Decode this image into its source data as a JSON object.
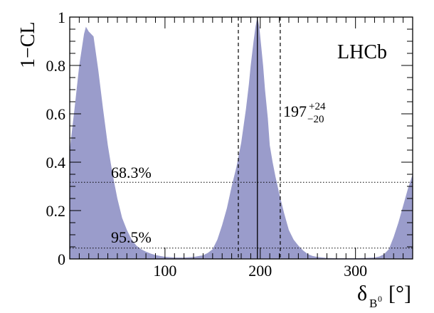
{
  "chart_data": {
    "type": "area",
    "experiment_label": "LHCb",
    "ylabel": "1−CL",
    "xlabel": {
      "symbol": "δ",
      "subscript": "B",
      "subscript_sup": "0",
      "unit": "[°]"
    },
    "xlim": [
      0,
      360
    ],
    "ylim": [
      0,
      1
    ],
    "xticks": [
      100,
      200,
      300
    ],
    "yticks": [
      0,
      0.2,
      0.4,
      0.6,
      0.8,
      1
    ],
    "ytick_labels": [
      "0",
      "0.2",
      "0.4",
      "0.6",
      "0.8",
      "1"
    ],
    "xtick_labels": [
      "100",
      "200",
      "300"
    ],
    "fill_color": "#9a9ccb",
    "series": [
      {
        "x": [
          0,
          5,
          10,
          15,
          17,
          20,
          25,
          30,
          35,
          40,
          45,
          50,
          55,
          60,
          65,
          70,
          75,
          80,
          85,
          90,
          95,
          100,
          110,
          120,
          130,
          140,
          145,
          150,
          155,
          160,
          165,
          170,
          175,
          180,
          185,
          188,
          190,
          193,
          195,
          197,
          199,
          201,
          203,
          205,
          208,
          210,
          213,
          216,
          220,
          225,
          230,
          235,
          240,
          245,
          250,
          255,
          260,
          270,
          280,
          290,
          300,
          310,
          320,
          325,
          330,
          335,
          340,
          345,
          350,
          355,
          360
        ],
        "y": [
          0.45,
          0.62,
          0.8,
          0.93,
          0.96,
          0.94,
          0.92,
          0.78,
          0.62,
          0.47,
          0.35,
          0.25,
          0.17,
          0.12,
          0.08,
          0.055,
          0.04,
          0.03,
          0.022,
          0.016,
          0.012,
          0.009,
          0.006,
          0.006,
          0.008,
          0.015,
          0.025,
          0.04,
          0.08,
          0.14,
          0.21,
          0.3,
          0.38,
          0.48,
          0.62,
          0.72,
          0.8,
          0.9,
          0.96,
          1.0,
          0.96,
          0.88,
          0.8,
          0.7,
          0.58,
          0.47,
          0.4,
          0.34,
          0.27,
          0.19,
          0.12,
          0.08,
          0.055,
          0.035,
          0.02,
          0.012,
          0.008,
          0.004,
          0.003,
          0.003,
          0.003,
          0.004,
          0.006,
          0.01,
          0.02,
          0.04,
          0.09,
          0.15,
          0.22,
          0.29,
          0.35
        ]
      }
    ],
    "best_fit": {
      "value": 197,
      "plus": 24,
      "minus": 20,
      "label_main": "197",
      "label_plus": "+24",
      "label_minus": "−20"
    },
    "interval_lines": [
      177,
      221
    ],
    "cl_levels": [
      {
        "label": "68.3%",
        "y": 0.317
      },
      {
        "label": "95.5%",
        "y": 0.045
      }
    ]
  }
}
